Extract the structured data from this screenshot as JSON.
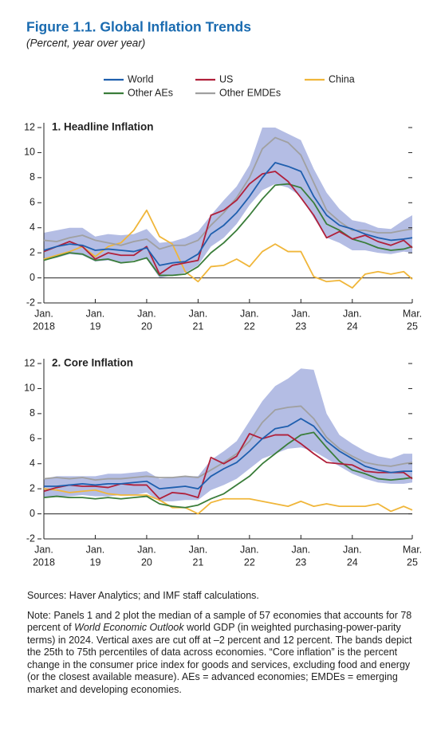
{
  "figure": {
    "title": "Figure 1.1.  Global Inflation Trends",
    "subtitle": "(Percent, year over year)"
  },
  "chart_data": [
    {
      "type": "line",
      "title": "1. Headline Inflation",
      "x": [
        "2018-01",
        "2018-04",
        "2018-07",
        "2018-10",
        "2019-01",
        "2019-04",
        "2019-07",
        "2019-10",
        "2020-01",
        "2020-04",
        "2020-07",
        "2020-10",
        "2021-01",
        "2021-04",
        "2021-07",
        "2021-10",
        "2022-01",
        "2022-04",
        "2022-07",
        "2022-10",
        "2023-01",
        "2023-04",
        "2023-07",
        "2023-10",
        "2024-01",
        "2024-04",
        "2024-07",
        "2024-10",
        "2025-01",
        "2025-03"
      ],
      "xticks": [
        {
          "value": "2018-01",
          "label": [
            "Jan.",
            "2018"
          ]
        },
        {
          "value": "2019-01",
          "label": [
            "Jan.",
            "19"
          ]
        },
        {
          "value": "2020-01",
          "label": [
            "Jan.",
            "20"
          ]
        },
        {
          "value": "2021-01",
          "label": [
            "Jan.",
            "21"
          ]
        },
        {
          "value": "2022-01",
          "label": [
            "Jan.",
            "22"
          ]
        },
        {
          "value": "2023-01",
          "label": [
            "Jan.",
            "23"
          ]
        },
        {
          "value": "2024-01",
          "label": [
            "Jan.",
            "24"
          ]
        },
        {
          "value": "2025-03",
          "label": [
            "Mar.",
            "25"
          ]
        }
      ],
      "ylim": [
        -2,
        12
      ],
      "yticks": [
        -2,
        0,
        2,
        4,
        6,
        8,
        10,
        12
      ],
      "zero_line": true,
      "band_color": "#b4bde4",
      "band_low": [
        1.4,
        1.6,
        1.9,
        1.8,
        1.3,
        1.4,
        1.2,
        1.4,
        1.5,
        0.0,
        0.2,
        0.4,
        1.0,
        2.5,
        3.2,
        4.3,
        5.8,
        7.0,
        7.5,
        7.2,
        6.5,
        4.8,
        3.2,
        2.8,
        2.2,
        2.2,
        2.0,
        1.9,
        2.1,
        2.0
      ],
      "band_high": [
        3.6,
        3.8,
        4.0,
        4.0,
        3.3,
        3.5,
        3.4,
        3.5,
        3.9,
        2.8,
        2.9,
        3.2,
        3.7,
        5.0,
        6.2,
        7.3,
        9.0,
        12,
        12,
        11.5,
        11,
        8.7,
        6.8,
        5.5,
        4.6,
        4.4,
        4.0,
        3.9,
        4.6,
        5.0
      ],
      "series": [
        {
          "name": "World",
          "color": "#1f5fae",
          "values": [
            2.2,
            2.5,
            2.7,
            2.6,
            2.2,
            2.3,
            2.2,
            2.1,
            2.4,
            1.0,
            1.2,
            1.3,
            1.9,
            3.5,
            4.2,
            5.2,
            6.5,
            8.0,
            9.2,
            8.9,
            8.5,
            6.5,
            5.0,
            4.2,
            3.9,
            3.5,
            3.2,
            3.0,
            3.1,
            3.2
          ]
        },
        {
          "name": "US",
          "color": "#b0203a",
          "values": [
            2.1,
            2.5,
            2.9,
            2.5,
            1.5,
            2.0,
            1.8,
            1.8,
            2.5,
            0.3,
            1.0,
            1.2,
            1.4,
            5.0,
            5.4,
            6.2,
            7.5,
            8.3,
            8.5,
            7.7,
            6.4,
            5.0,
            3.2,
            3.7,
            3.1,
            3.4,
            2.9,
            2.6,
            3.0,
            2.4
          ]
        },
        {
          "name": "China",
          "color": "#f0b63a",
          "values": [
            1.5,
            1.8,
            2.1,
            2.5,
            1.7,
            2.5,
            2.8,
            3.8,
            5.4,
            3.3,
            2.7,
            0.5,
            -0.3,
            0.9,
            1.0,
            1.5,
            0.9,
            2.1,
            2.7,
            2.1,
            2.1,
            0.1,
            -0.3,
            -0.2,
            -0.8,
            0.3,
            0.5,
            0.3,
            0.5,
            -0.1
          ]
        },
        {
          "name": "Other AEs",
          "color": "#3a7d3a",
          "values": [
            1.4,
            1.7,
            2.0,
            1.9,
            1.4,
            1.5,
            1.2,
            1.3,
            1.6,
            0.2,
            0.2,
            0.3,
            0.9,
            2.0,
            2.8,
            3.8,
            5.0,
            6.3,
            7.4,
            7.5,
            7.2,
            6.0,
            4.3,
            3.8,
            3.1,
            2.8,
            2.4,
            2.2,
            2.3,
            2.5
          ]
        },
        {
          "name": "Other EMDEs",
          "color": "#a0a0a0",
          "values": [
            3.0,
            2.9,
            3.2,
            3.4,
            3.0,
            2.8,
            2.6,
            2.9,
            3.1,
            2.3,
            2.6,
            2.6,
            3.0,
            4.2,
            5.2,
            6.4,
            8.0,
            10.3,
            11.2,
            10.8,
            9.8,
            7.6,
            5.4,
            4.5,
            3.8,
            3.8,
            3.6,
            3.6,
            3.8,
            3.9
          ]
        }
      ]
    },
    {
      "type": "line",
      "title": "2. Core Inflation",
      "x": [
        "2018-01",
        "2018-04",
        "2018-07",
        "2018-10",
        "2019-01",
        "2019-04",
        "2019-07",
        "2019-10",
        "2020-01",
        "2020-04",
        "2020-07",
        "2020-10",
        "2021-01",
        "2021-04",
        "2021-07",
        "2021-10",
        "2022-01",
        "2022-04",
        "2022-07",
        "2022-10",
        "2023-01",
        "2023-04",
        "2023-07",
        "2023-10",
        "2024-01",
        "2024-04",
        "2024-07",
        "2024-10",
        "2025-01",
        "2025-03"
      ],
      "xticks": [
        {
          "value": "2018-01",
          "label": [
            "Jan.",
            "2018"
          ]
        },
        {
          "value": "2019-01",
          "label": [
            "Jan.",
            "19"
          ]
        },
        {
          "value": "2020-01",
          "label": [
            "Jan.",
            "20"
          ]
        },
        {
          "value": "2021-01",
          "label": [
            "Jan.",
            "21"
          ]
        },
        {
          "value": "2022-01",
          "label": [
            "Jan.",
            "22"
          ]
        },
        {
          "value": "2023-01",
          "label": [
            "Jan.",
            "23"
          ]
        },
        {
          "value": "2024-01",
          "label": [
            "Jan.",
            "24"
          ]
        },
        {
          "value": "2025-03",
          "label": [
            "Mar.",
            "25"
          ]
        }
      ],
      "ylim": [
        -2,
        12
      ],
      "yticks": [
        -2,
        0,
        2,
        4,
        6,
        8,
        10,
        12
      ],
      "zero_line": true,
      "band_color": "#b4bde4",
      "band_low": [
        1.3,
        1.4,
        1.4,
        1.5,
        1.4,
        1.4,
        1.5,
        1.5,
        1.7,
        1.0,
        1.0,
        1.1,
        1.1,
        1.9,
        2.3,
        2.8,
        3.6,
        4.4,
        4.8,
        5.2,
        5.3,
        5.0,
        4.4,
        3.8,
        3.2,
        2.8,
        2.5,
        2.4,
        2.4,
        2.5
      ],
      "band_high": [
        2.8,
        3.0,
        3.0,
        3.0,
        3.0,
        3.2,
        3.2,
        3.3,
        3.4,
        2.8,
        2.9,
        3.0,
        3.0,
        4.3,
        5.0,
        5.8,
        7.4,
        9.0,
        10.2,
        10.8,
        11.6,
        11.5,
        8.0,
        6.3,
        5.6,
        5.0,
        4.6,
        4.4,
        4.8,
        4.8
      ],
      "series": [
        {
          "name": "World",
          "color": "#1f5fae",
          "values": [
            2.2,
            2.2,
            2.3,
            2.4,
            2.3,
            2.4,
            2.4,
            2.5,
            2.6,
            2.0,
            2.1,
            2.2,
            2.0,
            3.0,
            3.6,
            4.1,
            5.0,
            6.0,
            6.8,
            7.0,
            7.6,
            7.0,
            5.8,
            5.0,
            4.4,
            3.8,
            3.5,
            3.3,
            3.4,
            3.4
          ]
        },
        {
          "name": "US",
          "color": "#b0203a",
          "values": [
            1.8,
            2.1,
            2.3,
            2.2,
            2.2,
            2.1,
            2.4,
            2.3,
            2.3,
            1.2,
            1.7,
            1.6,
            1.3,
            4.5,
            4.0,
            4.6,
            6.4,
            6.0,
            6.3,
            6.3,
            5.6,
            4.8,
            4.1,
            4.0,
            3.9,
            3.4,
            3.3,
            3.3,
            3.3,
            2.8
          ]
        },
        {
          "name": "China",
          "color": "#f0b63a",
          "values": [
            2.0,
            1.9,
            1.7,
            1.8,
            1.9,
            1.6,
            1.5,
            1.5,
            1.5,
            1.1,
            0.5,
            0.5,
            0.0,
            0.9,
            1.2,
            1.2,
            1.2,
            1.0,
            0.8,
            0.6,
            1.0,
            0.6,
            0.8,
            0.6,
            0.6,
            0.6,
            0.8,
            0.2,
            0.6,
            0.3
          ]
        },
        {
          "name": "Other AEs",
          "color": "#3a7d3a",
          "values": [
            1.3,
            1.4,
            1.3,
            1.3,
            1.2,
            1.3,
            1.2,
            1.3,
            1.4,
            0.8,
            0.6,
            0.5,
            0.7,
            1.2,
            1.6,
            2.3,
            3.0,
            4.0,
            4.8,
            5.6,
            6.3,
            6.5,
            5.3,
            4.2,
            3.5,
            3.2,
            2.8,
            2.7,
            2.8,
            2.9
          ]
        },
        {
          "name": "Other EMDEs",
          "color": "#a0a0a0",
          "values": [
            2.8,
            2.9,
            2.8,
            2.9,
            2.7,
            2.8,
            2.8,
            2.9,
            3.0,
            2.9,
            2.9,
            3.0,
            2.9,
            3.5,
            4.1,
            4.8,
            5.8,
            7.3,
            8.3,
            8.5,
            8.6,
            7.6,
            6.1,
            5.2,
            4.6,
            4.1,
            3.9,
            3.8,
            4.0,
            4.1
          ]
        }
      ]
    }
  ],
  "notes": {
    "sources": "Sources: Haver Analytics; and IMF staff calculations.",
    "note": [
      "Note: Panels 1 and 2 plot the median of a sample of 57 economies that accounts for 78 percent of ",
      "World Economic Outlook",
      " world GDP (in weighted purchasing-power-parity terms) in 2024. Vertical axes are cut off at –2 percent and 12 percent. The bands depict the 25th to 75th percentiles of data across economies. “Core inflation” is the percent change in the consumer price index for goods and services, excluding food and energy (or the closest available measure). AEs = advanced economies; EMDEs = emerging market and developing economies."
    ]
  }
}
